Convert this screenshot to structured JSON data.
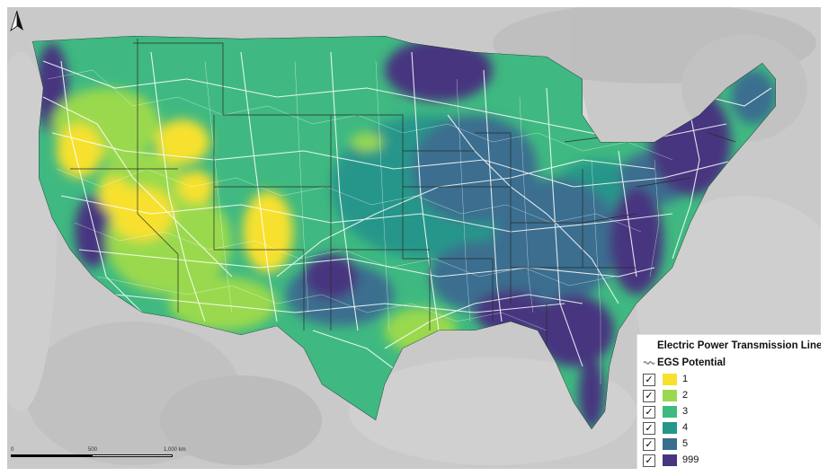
{
  "legend": {
    "title": "Electric Power Transmission Lines",
    "subtitle": "EGS Potential",
    "classes": [
      {
        "label": "1",
        "color": "#f7e12f",
        "checked": true
      },
      {
        "label": "2",
        "color": "#9ad94d",
        "checked": true
      },
      {
        "label": "3",
        "color": "#3fb981",
        "checked": true
      },
      {
        "label": "4",
        "color": "#25968a",
        "checked": true
      },
      {
        "label": "5",
        "color": "#3a6e8f",
        "checked": true
      },
      {
        "label": "999",
        "color": "#47357f",
        "checked": true
      }
    ],
    "check_glyph": "✓"
  },
  "scale": {
    "labels": [
      "0",
      "500",
      "1,000 km"
    ]
  },
  "icons": {
    "north_arrow": "north-arrow-icon",
    "transmission_line_symbol": "transmission-line-icon"
  },
  "colors": {
    "land_background": "#c8c8c8",
    "ocean": "#d2d2d2",
    "transmission_lines": "#ffffff",
    "state_borders": "#2a2a2a"
  }
}
